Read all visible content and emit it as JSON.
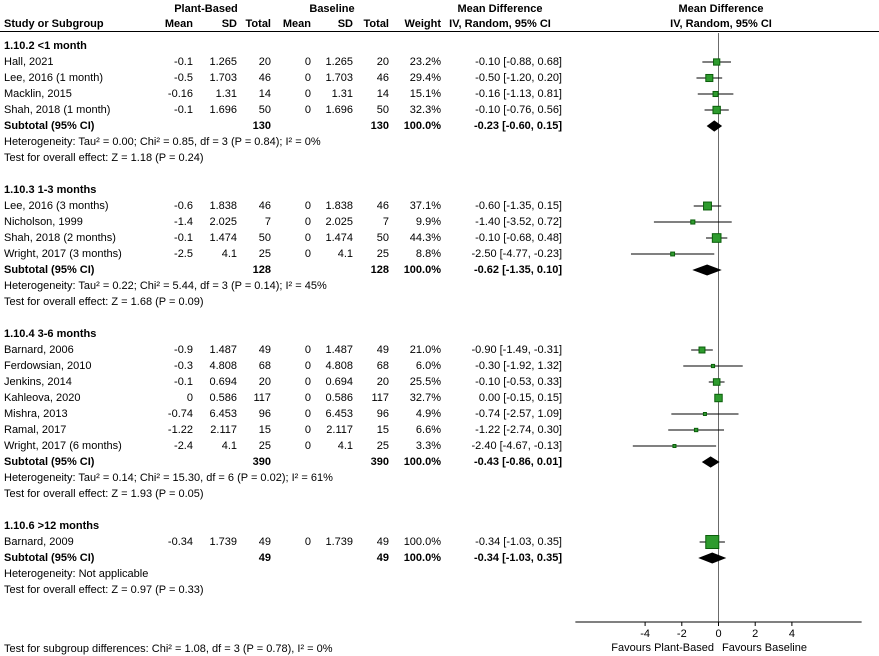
{
  "header": {
    "group1": "Plant-Based",
    "group2": "Baseline",
    "md": "Mean Difference",
    "col_study": "Study or Subgroup",
    "col_mean": "Mean",
    "col_sd": "SD",
    "col_total": "Total",
    "col_weight": "Weight",
    "col_ci": "IV, Random, 95% CI"
  },
  "chart_data": {
    "type": "scatter",
    "subtype": "forest-plot",
    "effect_measure": "Mean Difference (IV, Random, 95% CI)",
    "axis": {
      "ticks": [
        -4,
        -2,
        0,
        2,
        4
      ],
      "range": [
        -7.8,
        7.8
      ],
      "favours_left": "Favours Plant-Based",
      "favours_right": "Favours Baseline"
    },
    "subgroups": [
      {
        "title": "1.10.2 <1 month",
        "studies": [
          {
            "study": "Hall, 2021",
            "mean1": "-0.1",
            "sd1": "1.265",
            "total1": "20",
            "mean2": "0",
            "sd2": "1.265",
            "total2": "20",
            "weight": "23.2%",
            "ci_text": "-0.10 [-0.88, 0.68]",
            "est": -0.1,
            "lo": -0.88,
            "hi": 0.68,
            "weight_pct": 23.2
          },
          {
            "study": "Lee, 2016 (1 month)",
            "mean1": "-0.5",
            "sd1": "1.703",
            "total1": "46",
            "mean2": "0",
            "sd2": "1.703",
            "total2": "46",
            "weight": "29.4%",
            "ci_text": "-0.50 [-1.20, 0.20]",
            "est": -0.5,
            "lo": -1.2,
            "hi": 0.2,
            "weight_pct": 29.4
          },
          {
            "study": "Macklin, 2015",
            "mean1": "-0.16",
            "sd1": "1.31",
            "total1": "14",
            "mean2": "0",
            "sd2": "1.31",
            "total2": "14",
            "weight": "15.1%",
            "ci_text": "-0.16 [-1.13, 0.81]",
            "est": -0.16,
            "lo": -1.13,
            "hi": 0.81,
            "weight_pct": 15.1
          },
          {
            "study": "Shah, 2018 (1 month)",
            "mean1": "-0.1",
            "sd1": "1.696",
            "total1": "50",
            "mean2": "0",
            "sd2": "1.696",
            "total2": "50",
            "weight": "32.3%",
            "ci_text": "-0.10 [-0.76, 0.56]",
            "est": -0.1,
            "lo": -0.76,
            "hi": 0.56,
            "weight_pct": 32.3
          }
        ],
        "subtotal": {
          "label": "Subtotal (95% CI)",
          "total1": "130",
          "total2": "130",
          "weight": "100.0%",
          "ci_text": "-0.23 [-0.60, 0.15]",
          "est": -0.23,
          "lo": -0.6,
          "hi": 0.15
        },
        "heterogeneity": "Heterogeneity: Tau² = 0.00; Chi² = 0.85, df = 3 (P = 0.84); I² = 0%",
        "overall_effect": "Test for overall effect: Z = 1.18 (P = 0.24)"
      },
      {
        "title": "1.10.3 1-3 months",
        "studies": [
          {
            "study": "Lee, 2016 (3 months)",
            "mean1": "-0.6",
            "sd1": "1.838",
            "total1": "46",
            "mean2": "0",
            "sd2": "1.838",
            "total2": "46",
            "weight": "37.1%",
            "ci_text": "-0.60 [-1.35, 0.15]",
            "est": -0.6,
            "lo": -1.35,
            "hi": 0.15,
            "weight_pct": 37.1
          },
          {
            "study": "Nicholson, 1999",
            "mean1": "-1.4",
            "sd1": "2.025",
            "total1": "7",
            "mean2": "0",
            "sd2": "2.025",
            "total2": "7",
            "weight": "9.9%",
            "ci_text": "-1.40 [-3.52, 0.72]",
            "est": -1.4,
            "lo": -3.52,
            "hi": 0.72,
            "weight_pct": 9.9
          },
          {
            "study": "Shah, 2018 (2 months)",
            "mean1": "-0.1",
            "sd1": "1.474",
            "total1": "50",
            "mean2": "0",
            "sd2": "1.474",
            "total2": "50",
            "weight": "44.3%",
            "ci_text": "-0.10 [-0.68, 0.48]",
            "est": -0.1,
            "lo": -0.68,
            "hi": 0.48,
            "weight_pct": 44.3
          },
          {
            "study": "Wright, 2017 (3 months)",
            "mean1": "-2.5",
            "sd1": "4.1",
            "total1": "25",
            "mean2": "0",
            "sd2": "4.1",
            "total2": "25",
            "weight": "8.8%",
            "ci_text": "-2.50 [-4.77, -0.23]",
            "est": -2.5,
            "lo": -4.77,
            "hi": -0.23,
            "weight_pct": 8.8
          }
        ],
        "subtotal": {
          "label": "Subtotal (95% CI)",
          "total1": "128",
          "total2": "128",
          "weight": "100.0%",
          "ci_text": "-0.62 [-1.35, 0.10]",
          "est": -0.62,
          "lo": -1.35,
          "hi": 0.1
        },
        "heterogeneity": "Heterogeneity: Tau² = 0.22; Chi² = 5.44, df = 3 (P = 0.14); I² = 45%",
        "overall_effect": "Test for overall effect: Z = 1.68 (P = 0.09)"
      },
      {
        "title": "1.10.4 3-6 months",
        "studies": [
          {
            "study": "Barnard, 2006",
            "mean1": "-0.9",
            "sd1": "1.487",
            "total1": "49",
            "mean2": "0",
            "sd2": "1.487",
            "total2": "49",
            "weight": "21.0%",
            "ci_text": "-0.90 [-1.49, -0.31]",
            "est": -0.9,
            "lo": -1.49,
            "hi": -0.31,
            "weight_pct": 21.0
          },
          {
            "study": "Ferdowsian, 2010",
            "mean1": "-0.3",
            "sd1": "4.808",
            "total1": "68",
            "mean2": "0",
            "sd2": "4.808",
            "total2": "68",
            "weight": "6.0%",
            "ci_text": "-0.30 [-1.92, 1.32]",
            "est": -0.3,
            "lo": -1.92,
            "hi": 1.32,
            "weight_pct": 6.0
          },
          {
            "study": "Jenkins, 2014",
            "mean1": "-0.1",
            "sd1": "0.694",
            "total1": "20",
            "mean2": "0",
            "sd2": "0.694",
            "total2": "20",
            "weight": "25.5%",
            "ci_text": "-0.10 [-0.53, 0.33]",
            "est": -0.1,
            "lo": -0.53,
            "hi": 0.33,
            "weight_pct": 25.5
          },
          {
            "study": "Kahleova, 2020",
            "mean1": "0",
            "sd1": "0.586",
            "total1": "117",
            "mean2": "0",
            "sd2": "0.586",
            "total2": "117",
            "weight": "32.7%",
            "ci_text": "0.00 [-0.15, 0.15]",
            "est": 0.0,
            "lo": -0.15,
            "hi": 0.15,
            "weight_pct": 32.7
          },
          {
            "study": "Mishra, 2013",
            "mean1": "-0.74",
            "sd1": "6.453",
            "total1": "96",
            "mean2": "0",
            "sd2": "6.453",
            "total2": "96",
            "weight": "4.9%",
            "ci_text": "-0.74 [-2.57, 1.09]",
            "est": -0.74,
            "lo": -2.57,
            "hi": 1.09,
            "weight_pct": 4.9
          },
          {
            "study": "Ramal, 2017",
            "mean1": "-1.22",
            "sd1": "2.117",
            "total1": "15",
            "mean2": "0",
            "sd2": "2.117",
            "total2": "15",
            "weight": "6.6%",
            "ci_text": "-1.22 [-2.74, 0.30]",
            "est": -1.22,
            "lo": -2.74,
            "hi": 0.3,
            "weight_pct": 6.6
          },
          {
            "study": "Wright, 2017 (6 months)",
            "mean1": "-2.4",
            "sd1": "4.1",
            "total1": "25",
            "mean2": "0",
            "sd2": "4.1",
            "total2": "25",
            "weight": "3.3%",
            "ci_text": "-2.40 [-4.67, -0.13]",
            "est": -2.4,
            "lo": -4.67,
            "hi": -0.13,
            "weight_pct": 3.3
          }
        ],
        "subtotal": {
          "label": "Subtotal (95% CI)",
          "total1": "390",
          "total2": "390",
          "weight": "100.0%",
          "ci_text": "-0.43 [-0.86, 0.01]",
          "est": -0.43,
          "lo": -0.86,
          "hi": 0.01
        },
        "heterogeneity": "Heterogeneity: Tau² = 0.14; Chi² = 15.30, df = 6 (P = 0.02); I² = 61%",
        "overall_effect": "Test for overall effect: Z = 1.93 (P = 0.05)"
      },
      {
        "title": "1.10.6 >12 months",
        "studies": [
          {
            "study": "Barnard, 2009",
            "mean1": "-0.34",
            "sd1": "1.739",
            "total1": "49",
            "mean2": "0",
            "sd2": "1.739",
            "total2": "49",
            "weight": "100.0%",
            "ci_text": "-0.34 [-1.03, 0.35]",
            "est": -0.34,
            "lo": -1.03,
            "hi": 0.35,
            "weight_pct": 100.0
          }
        ],
        "subtotal": {
          "label": "Subtotal (95% CI)",
          "total1": "49",
          "total2": "49",
          "weight": "100.0%",
          "ci_text": "-0.34 [-1.03, 0.35]",
          "est": -0.34,
          "lo": -1.03,
          "hi": 0.35
        },
        "heterogeneity": "Heterogeneity: Not applicable",
        "overall_effect": "Test for overall effect: Z = 0.97 (P = 0.33)"
      }
    ]
  },
  "footer": {
    "subgroup_difference": "Test for subgroup differences: Chi² = 1.08, df = 3 (P = 0.78), I² = 0%"
  },
  "colors": {
    "square_fill": "#2E9B2E",
    "square_stroke": "#0B5E0B",
    "diamond_fill": "#000000",
    "ci_line": "#000000",
    "zero_line": "#6b6b6b"
  }
}
